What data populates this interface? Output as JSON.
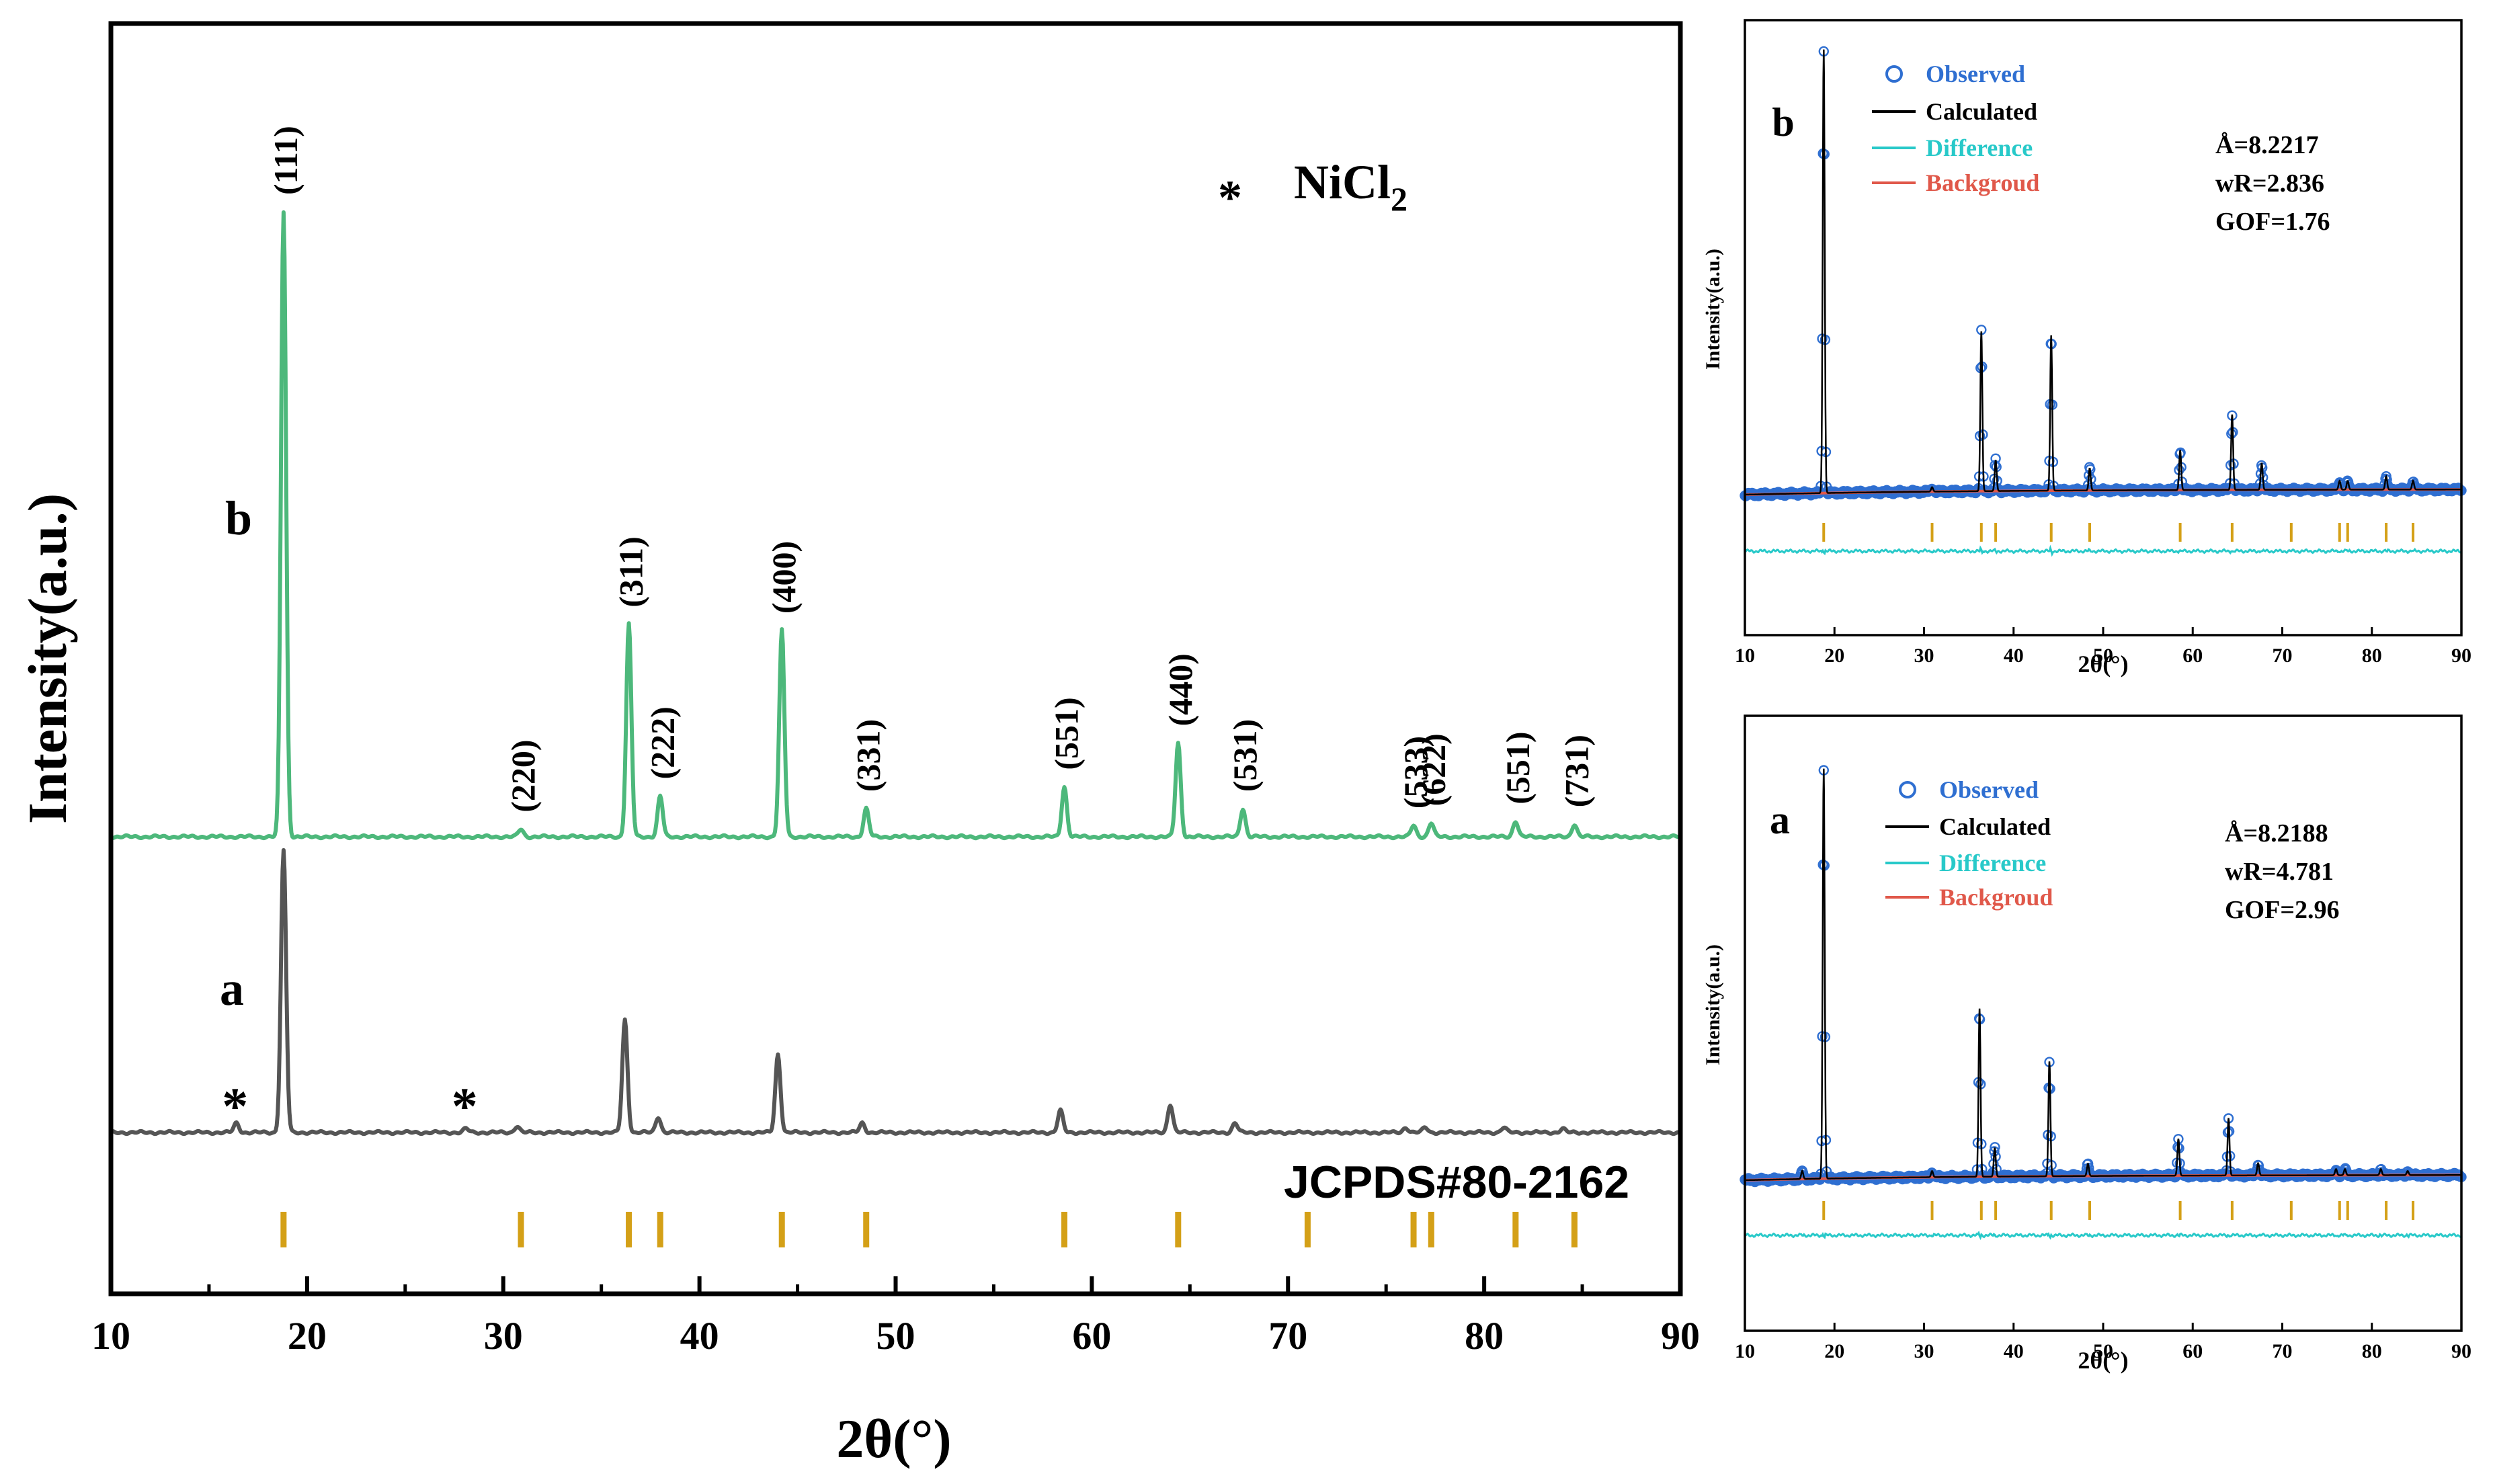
{
  "colors": {
    "pattern_b": "#4db87b",
    "pattern_a": "#555555",
    "ref_tick": "#d4a017",
    "observed": "#2f6fd1",
    "calculated": "#000000",
    "difference": "#28c9c9",
    "background": "#e0584a"
  },
  "chart_data": [
    {
      "type": "line",
      "title": "",
      "xlabel": "2θ(°)",
      "ylabel": "Intensity(a.u.)",
      "xlim": [
        10,
        90
      ],
      "xticks": [
        "10",
        "20",
        "30",
        "40",
        "50",
        "60",
        "70",
        "80",
        "90"
      ],
      "legend_note": {
        "marker": "*",
        "label": "NiCl",
        "subscript": "2"
      },
      "reference_label": "JCPDS#80-2162",
      "reference_positions": [
        18.8,
        30.9,
        36.4,
        38.0,
        44.2,
        48.5,
        58.6,
        64.4,
        71.0,
        76.4,
        77.3,
        81.6,
        84.6
      ],
      "series": [
        {
          "name": "b",
          "baseline": 0,
          "peaks": [
            {
              "x": 18.8,
              "height": 100,
              "hkl": "(111)"
            },
            {
              "x": 30.9,
              "height": 1.2,
              "hkl": "(220)"
            },
            {
              "x": 36.4,
              "height": 34,
              "hkl": "(311)"
            },
            {
              "x": 38.0,
              "height": 6.5,
              "hkl": "(222)"
            },
            {
              "x": 44.2,
              "height": 33,
              "hkl": "(400)"
            },
            {
              "x": 48.5,
              "height": 4.5,
              "hkl": "(331)"
            },
            {
              "x": 58.6,
              "height": 8,
              "hkl": "(551)"
            },
            {
              "x": 64.4,
              "height": 15,
              "hkl": "(440)"
            },
            {
              "x": 67.7,
              "height": 4.5,
              "hkl": "(531)"
            },
            {
              "x": 76.4,
              "height": 1.8,
              "hkl": "(533)"
            },
            {
              "x": 77.3,
              "height": 2.2,
              "hkl": "(622)"
            },
            {
              "x": 81.6,
              "height": 2.5,
              "hkl": "(551)"
            },
            {
              "x": 84.6,
              "height": 2.0,
              "hkl": "(731)"
            }
          ]
        },
        {
          "name": "a",
          "baseline": 0,
          "impurity_marks": [
            {
              "x": 16.4,
              "label": "*"
            },
            {
              "x": 28.1,
              "label": "*"
            }
          ],
          "peaks": [
            {
              "x": 16.4,
              "height": 1.5
            },
            {
              "x": 18.8,
              "height": 45
            },
            {
              "x": 28.1,
              "height": 0.6
            },
            {
              "x": 30.7,
              "height": 1.0
            },
            {
              "x": 36.2,
              "height": 18
            },
            {
              "x": 37.9,
              "height": 2.5
            },
            {
              "x": 44.0,
              "height": 12.5
            },
            {
              "x": 48.3,
              "height": 1.5
            },
            {
              "x": 58.4,
              "height": 3.5
            },
            {
              "x": 64.0,
              "height": 4.5
            },
            {
              "x": 67.3,
              "height": 1.5
            },
            {
              "x": 76.0,
              "height": 0.8
            },
            {
              "x": 77.0,
              "height": 0.8
            },
            {
              "x": 81.0,
              "height": 0.8
            },
            {
              "x": 84.0,
              "height": 0.6
            }
          ]
        }
      ]
    },
    {
      "type": "scatter",
      "panel_label": "b",
      "xlabel": "2θ(°)",
      "ylabel": "Intensity(a.u.)",
      "xlim": [
        10,
        90
      ],
      "xticks": [
        "10",
        "20",
        "30",
        "40",
        "50",
        "60",
        "70",
        "80",
        "90"
      ],
      "legend": [
        "Observed",
        "Calculated",
        "Difference",
        "Backgroud"
      ],
      "fit_params": [
        "Å=8.2217",
        "wR=2.836",
        "GOF=1.76"
      ],
      "reference_positions": [
        18.8,
        30.9,
        36.4,
        38.0,
        44.2,
        48.5,
        58.6,
        64.4,
        71.0,
        76.4,
        77.3,
        81.6,
        84.6
      ],
      "peaks": [
        {
          "x": 18.8,
          "height": 100
        },
        {
          "x": 30.9,
          "height": 1.0
        },
        {
          "x": 36.4,
          "height": 36
        },
        {
          "x": 38.0,
          "height": 7
        },
        {
          "x": 44.2,
          "height": 35
        },
        {
          "x": 48.5,
          "height": 5
        },
        {
          "x": 58.6,
          "height": 9
        },
        {
          "x": 64.4,
          "height": 17
        },
        {
          "x": 67.7,
          "height": 6
        },
        {
          "x": 76.4,
          "height": 2
        },
        {
          "x": 77.3,
          "height": 2
        },
        {
          "x": 81.6,
          "height": 3
        },
        {
          "x": 84.6,
          "height": 2
        }
      ]
    },
    {
      "type": "scatter",
      "panel_label": "a",
      "xlabel": "2θ(°)",
      "ylabel": "Intensity(a.u.)",
      "xlim": [
        10,
        90
      ],
      "xticks": [
        "10",
        "20",
        "30",
        "40",
        "50",
        "60",
        "70",
        "80",
        "90"
      ],
      "legend": [
        "Observed",
        "Calculated",
        "Difference",
        "Backgroud"
      ],
      "fit_params": [
        "Å=8.2188",
        "wR=4.781",
        "GOF=2.96"
      ],
      "reference_positions": [
        18.8,
        30.9,
        36.4,
        38.0,
        44.2,
        48.5,
        58.6,
        64.4,
        71.0,
        76.4,
        77.3,
        81.6,
        84.6
      ],
      "peaks": [
        {
          "x": 16.4,
          "height": 2
        },
        {
          "x": 18.8,
          "height": 100
        },
        {
          "x": 30.9,
          "height": 1.5
        },
        {
          "x": 36.2,
          "height": 41
        },
        {
          "x": 37.9,
          "height": 7
        },
        {
          "x": 44.0,
          "height": 28
        },
        {
          "x": 48.3,
          "height": 3
        },
        {
          "x": 58.4,
          "height": 9
        },
        {
          "x": 64.0,
          "height": 14
        },
        {
          "x": 67.3,
          "height": 3
        },
        {
          "x": 76.0,
          "height": 1.5
        },
        {
          "x": 77.0,
          "height": 1.5
        },
        {
          "x": 81.0,
          "height": 1.5
        },
        {
          "x": 84.0,
          "height": 1
        }
      ]
    }
  ]
}
